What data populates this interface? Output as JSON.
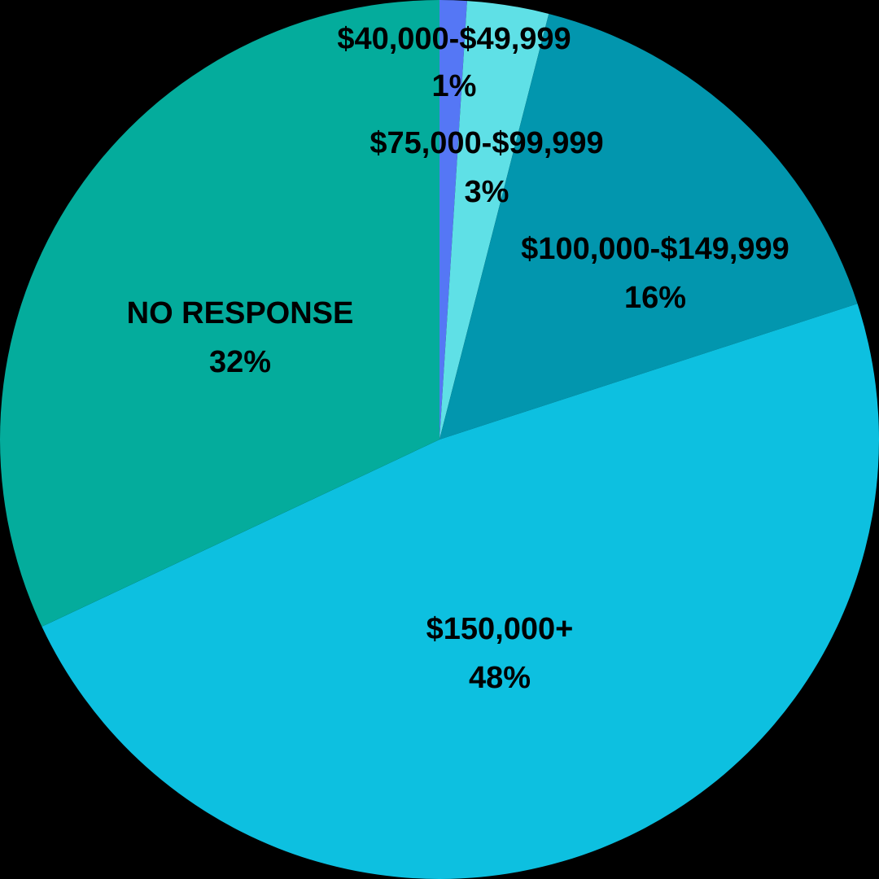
{
  "chart_data": {
    "type": "pie",
    "title": "",
    "start_angle_deg": 0,
    "direction": "clockwise",
    "legend": "none",
    "slices": [
      {
        "label": "$40,000-$49,999",
        "value": 1,
        "value_label": "1%",
        "color": "#5577F5"
      },
      {
        "label": "$75,000-$99,999",
        "value": 3,
        "value_label": "3%",
        "color": "#5FE0E6"
      },
      {
        "label": "$100,000-$149,999",
        "value": 16,
        "value_label": "16%",
        "color": "#0296AE"
      },
      {
        "label": "$150,000+",
        "value": 48,
        "value_label": "48%",
        "color": "#0DC0E0"
      },
      {
        "label": "NO RESPONSE",
        "value": 32,
        "value_label": "32%",
        "color": "#04AC9C"
      }
    ]
  }
}
